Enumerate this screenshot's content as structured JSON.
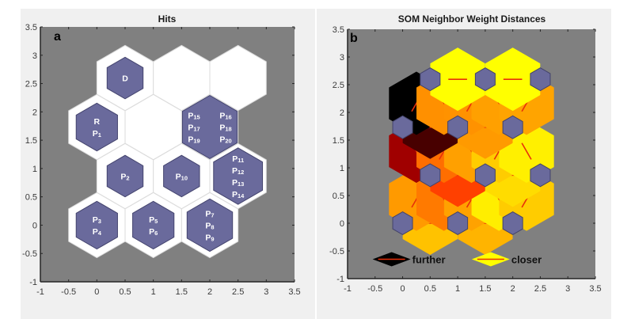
{
  "chart_data": [
    {
      "type": "heatmap",
      "title": "Hits",
      "panel_label": "a",
      "xlabel": "",
      "ylabel": "",
      "xlim": [
        -1,
        3.5
      ],
      "ylim": [
        -1,
        3.5
      ],
      "xticks": [
        "-1",
        "-0.5",
        "0",
        "0.5",
        "1",
        "1.5",
        "2",
        "2.5",
        "3",
        "3.5"
      ],
      "yticks": [
        "-1",
        "-0.5",
        "0",
        "0.5",
        "1",
        "1.5",
        "2",
        "2.5",
        "3",
        "3.5"
      ],
      "grid": false,
      "neurons": [
        {
          "x": 0,
          "y": 0,
          "hits": 2,
          "labels": [
            [
              "P",
              "3"
            ],
            [
              "P",
              "4"
            ]
          ]
        },
        {
          "x": 1,
          "y": 0,
          "hits": 2,
          "labels": [
            [
              "P",
              "5"
            ],
            [
              "P",
              "6"
            ]
          ]
        },
        {
          "x": 2,
          "y": 0,
          "hits": 3,
          "labels": [
            [
              "P",
              "7"
            ],
            [
              "P",
              "8"
            ],
            [
              "P",
              "9"
            ]
          ]
        },
        {
          "x": 0.5,
          "y": 0.866,
          "hits": 1,
          "labels": [
            [
              "P",
              "2"
            ]
          ]
        },
        {
          "x": 1.5,
          "y": 0.866,
          "hits": 1,
          "labels": [
            [
              "P",
              "10"
            ]
          ]
        },
        {
          "x": 2.5,
          "y": 0.866,
          "hits": 4,
          "labels": [
            [
              "P",
              "11"
            ],
            [
              "P",
              "12"
            ],
            [
              "P",
              "13"
            ],
            [
              "P",
              "14"
            ]
          ]
        },
        {
          "x": 0,
          "y": 1.732,
          "hits": 2,
          "labels": [
            [
              "R",
              ""
            ],
            [
              "P",
              "1"
            ]
          ]
        },
        {
          "x": 1,
          "y": 1.732,
          "hits": 0,
          "labels": []
        },
        {
          "x": 2,
          "y": 1.732,
          "hits": 6,
          "labels": [
            [
              "P",
              "15"
            ],
            [
              "P",
              "16"
            ],
            [
              "P",
              "17"
            ],
            [
              "P",
              "18"
            ],
            [
              "P",
              "19"
            ],
            [
              "P",
              "20"
            ]
          ]
        },
        {
          "x": 0.5,
          "y": 2.598,
          "hits": 1,
          "labels": [
            [
              "D",
              ""
            ]
          ]
        },
        {
          "x": 1.5,
          "y": 2.598,
          "hits": 0,
          "labels": []
        },
        {
          "x": 2.5,
          "y": 2.598,
          "hits": 0,
          "labels": []
        }
      ],
      "colors": {
        "background": "#808080",
        "cell": "#ffffff",
        "hit": "#6a6a9c"
      }
    },
    {
      "type": "heatmap",
      "title": "SOM Neighbor Weight Distances",
      "panel_label": "b",
      "xlabel": "",
      "ylabel": "",
      "xlim": [
        -1,
        3.5
      ],
      "ylim": [
        -1,
        3.5
      ],
      "xticks": [
        "-1",
        "-0.5",
        "0",
        "0.5",
        "1",
        "1.5",
        "2",
        "2.5",
        "3",
        "3.5"
      ],
      "yticks": [
        "-1",
        "-0.5",
        "0",
        "0.5",
        "1",
        "1.5",
        "2",
        "2.5",
        "3",
        "3.5"
      ],
      "grid": false,
      "neurons": [
        {
          "x": 0,
          "y": 0
        },
        {
          "x": 1,
          "y": 0
        },
        {
          "x": 2,
          "y": 0
        },
        {
          "x": 0.5,
          "y": 0.866
        },
        {
          "x": 1.5,
          "y": 0.866
        },
        {
          "x": 2.5,
          "y": 0.866
        },
        {
          "x": 0,
          "y": 1.732
        },
        {
          "x": 1,
          "y": 1.732
        },
        {
          "x": 2,
          "y": 1.732
        },
        {
          "x": 0.5,
          "y": 2.598
        },
        {
          "x": 1.5,
          "y": 2.598
        },
        {
          "x": 2.5,
          "y": 2.598
        }
      ],
      "connections": [
        {
          "from": 0,
          "to": 1,
          "color": "#ffc200"
        },
        {
          "from": 1,
          "to": 2,
          "color": "#ffb400"
        },
        {
          "from": 0,
          "to": 3,
          "color": "#ff9a00"
        },
        {
          "from": 1,
          "to": 3,
          "color": "#ff7a00"
        },
        {
          "from": 1,
          "to": 4,
          "color": "#ffa200"
        },
        {
          "from": 2,
          "to": 4,
          "color": "#ffee00"
        },
        {
          "from": 2,
          "to": 5,
          "color": "#ffcc00"
        },
        {
          "from": 3,
          "to": 4,
          "color": "#ff4000"
        },
        {
          "from": 4,
          "to": 5,
          "color": "#ffdc00"
        },
        {
          "from": 3,
          "to": 6,
          "color": "#a00000"
        },
        {
          "from": 3,
          "to": 7,
          "color": "#ff6e00"
        },
        {
          "from": 4,
          "to": 7,
          "color": "#ffa000"
        },
        {
          "from": 4,
          "to": 8,
          "color": "#ffcc00"
        },
        {
          "from": 5,
          "to": 8,
          "color": "#fff000"
        },
        {
          "from": 6,
          "to": 7,
          "color": "#480000"
        },
        {
          "from": 7,
          "to": 8,
          "color": "#ff9a00"
        },
        {
          "from": 6,
          "to": 9,
          "color": "#000000"
        },
        {
          "from": 7,
          "to": 9,
          "color": "#ff9000"
        },
        {
          "from": 7,
          "to": 10,
          "color": "#ff9200"
        },
        {
          "from": 8,
          "to": 10,
          "color": "#ffa000"
        },
        {
          "from": 8,
          "to": 11,
          "color": "#ffa400"
        },
        {
          "from": 9,
          "to": 10,
          "color": "#ffff00"
        },
        {
          "from": 10,
          "to": 11,
          "color": "#ffff00"
        }
      ],
      "legend": {
        "placement": "bottom",
        "items": [
          {
            "label": "further",
            "color": "#000000"
          },
          {
            "label": "closer",
            "color": "#ffff00"
          }
        ]
      },
      "colors": {
        "background": "#808080",
        "neuron": "#6a6a9c",
        "line": "#e8300a"
      }
    }
  ]
}
